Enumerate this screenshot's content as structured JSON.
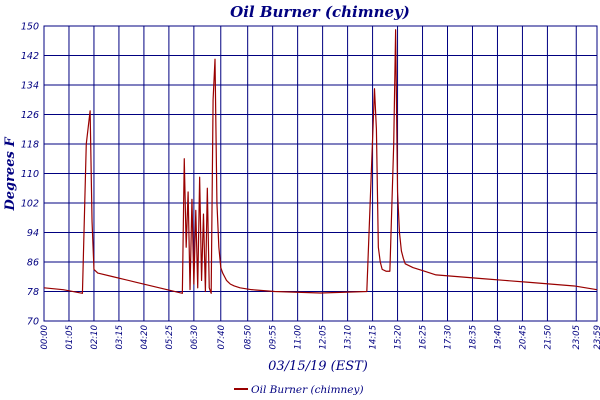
{
  "chart_data": {
    "type": "line",
    "title": "Oil Burner (chimney)",
    "ylabel": "Degrees F",
    "xlabel": "03/15/19 (EST)",
    "ylim": [
      70,
      150
    ],
    "yticks": [
      70,
      78,
      86,
      94,
      102,
      110,
      118,
      126,
      134,
      142,
      150
    ],
    "x_ticks": [
      "00:00",
      "01:05",
      "02:10",
      "03:15",
      "04:20",
      "05:25",
      "06:30",
      "07:40",
      "08:50",
      "09:55",
      "11:00",
      "12:05",
      "13:10",
      "14:15",
      "15:20",
      "16:25",
      "17:30",
      "18:35",
      "19:40",
      "20:45",
      "21:50",
      "23:05",
      "23:59"
    ],
    "grid": true,
    "legend_position": "bottom",
    "series": [
      {
        "name": "Oil Burner (chimney)",
        "color": "#990000",
        "x": [
          "00:00",
          "00:50",
          "01:40",
          "01:50",
          "02:00",
          "02:05",
          "02:10",
          "02:20",
          "03:00",
          "04:00",
          "05:00",
          "06:00",
          "06:05",
          "06:10",
          "06:15",
          "06:20",
          "06:25",
          "06:30",
          "06:35",
          "06:40",
          "06:45",
          "06:50",
          "06:55",
          "07:00",
          "07:05",
          "07:10",
          "07:15",
          "07:20",
          "07:25",
          "07:30",
          "07:35",
          "07:40",
          "07:45",
          "07:50",
          "07:55",
          "08:00",
          "08:05",
          "08:15",
          "08:30",
          "09:00",
          "10:00",
          "11:00",
          "12:00",
          "13:00",
          "14:00",
          "14:20",
          "14:25",
          "14:30",
          "14:35",
          "14:40",
          "14:50",
          "15:00",
          "15:10",
          "15:15",
          "15:20",
          "15:25",
          "15:30",
          "15:35",
          "15:40",
          "15:50",
          "16:00",
          "16:30",
          "17:00",
          "18:00",
          "19:00",
          "20:00",
          "21:00",
          "22:00",
          "23:00",
          "23:59"
        ],
        "y": [
          79,
          78.5,
          77.5,
          118,
          127,
          97,
          84,
          83,
          82,
          80.5,
          79,
          77.5,
          114,
          90,
          105,
          78.5,
          103,
          80,
          100,
          79,
          109,
          81,
          99,
          78,
          106,
          79,
          77.5,
          130,
          141,
          102,
          90,
          84.5,
          83,
          82,
          81,
          80.5,
          80,
          79.5,
          79,
          78.5,
          78,
          77.8,
          77.6,
          77.8,
          78,
          133,
          122,
          90,
          86,
          84,
          83.5,
          83.5,
          118,
          149,
          105,
          94,
          89,
          87,
          85.5,
          85,
          84.5,
          83.5,
          82.5,
          82,
          81.5,
          81,
          80.5,
          80,
          79.5,
          78.5
        ]
      }
    ]
  }
}
